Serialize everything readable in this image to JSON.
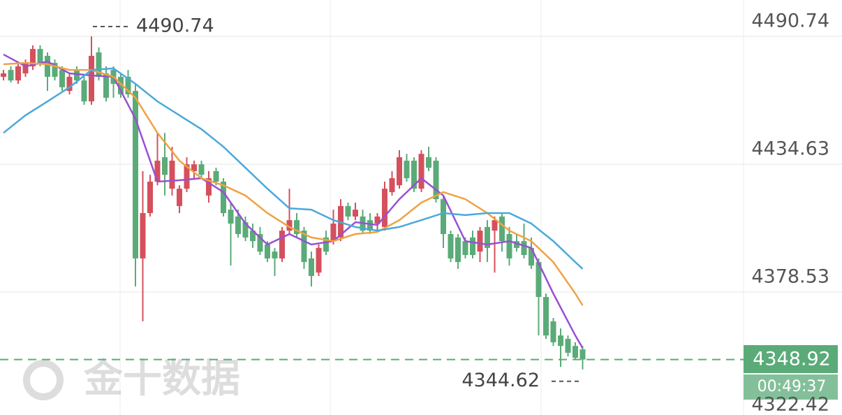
{
  "chart_data": {
    "type": "candlestick",
    "up_color": "#d4505c",
    "down_color": "#5aab78",
    "ylim": [
      4324.6,
      4506.7
    ],
    "yticks": [
      4490.74,
      4434.63,
      4378.53,
      4322.42
    ],
    "grid": true,
    "ohlc": [
      [
        4473.0,
        4476.0,
        4471.4,
        4474.5
      ],
      [
        4476.0,
        4477.6,
        4470.5,
        4471.4
      ],
      [
        4471.4,
        4479.1,
        4469.9,
        4477.6
      ],
      [
        4474.5,
        4480.6,
        4473.0,
        4479.1
      ],
      [
        4477.6,
        4486.8,
        4476.0,
        4485.2
      ],
      [
        4485.2,
        4486.8,
        4477.6,
        4479.1
      ],
      [
        4482.2,
        4483.7,
        4466.8,
        4473.0
      ],
      [
        4479.1,
        4480.6,
        4471.4,
        4473.0
      ],
      [
        4476.0,
        4477.6,
        4466.8,
        4468.4
      ],
      [
        4466.8,
        4474.5,
        4465.3,
        4473.0
      ],
      [
        4476.0,
        4477.6,
        4469.9,
        4471.4
      ],
      [
        4471.4,
        4473.0,
        4460.7,
        4462.2
      ],
      [
        4462.2,
        4490.74,
        4460.7,
        4482.2
      ],
      [
        4483.7,
        4485.9,
        4471.4,
        4473.0
      ],
      [
        4474.5,
        4477.6,
        4462.2,
        4463.8
      ],
      [
        4476.0,
        4477.6,
        4463.8,
        4469.9
      ],
      [
        4473.0,
        4474.5,
        4463.8,
        4465.3
      ],
      [
        4473.0,
        4476.0,
        4463.8,
        4465.3
      ],
      [
        4466.8,
        4469.9,
        4381.0,
        4393.3
      ],
      [
        4393.3,
        4431.6,
        4365.7,
        4413.2
      ],
      [
        4413.2,
        4430.0,
        4411.7,
        4427.0
      ],
      [
        4427.0,
        4448.4,
        4425.4,
        4436.2
      ],
      [
        4437.7,
        4448.4,
        4420.9,
        4430.0
      ],
      [
        4423.9,
        4442.3,
        4420.9,
        4436.2
      ],
      [
        4416.3,
        4425.4,
        4413.2,
        4423.9
      ],
      [
        4423.9,
        4437.7,
        4422.4,
        4434.6
      ],
      [
        4431.6,
        4436.2,
        4428.5,
        4434.6
      ],
      [
        4434.6,
        4436.2,
        4428.5,
        4430.0
      ],
      [
        4420.9,
        4431.6,
        4417.8,
        4428.5
      ],
      [
        4431.6,
        4433.1,
        4425.4,
        4427.0
      ],
      [
        4427.0,
        4428.5,
        4411.7,
        4413.2
      ],
      [
        4414.7,
        4417.8,
        4390.2,
        4408.6
      ],
      [
        4411.7,
        4414.7,
        4402.5,
        4404.0
      ],
      [
        4409.2,
        4411.7,
        4400.9,
        4402.5
      ],
      [
        4405.5,
        4408.6,
        4397.9,
        4400.9
      ],
      [
        4404.0,
        4407.1,
        4394.8,
        4396.3
      ],
      [
        4399.4,
        4400.9,
        4391.7,
        4393.3
      ],
      [
        4396.3,
        4397.9,
        4385.6,
        4393.3
      ],
      [
        4393.3,
        4407.1,
        4391.7,
        4405.5
      ],
      [
        4405.5,
        4423.9,
        4404.0,
        4410.1
      ],
      [
        4410.1,
        4413.2,
        4402.5,
        4404.0
      ],
      [
        4405.5,
        4407.1,
        4388.7,
        4391.7
      ],
      [
        4393.3,
        4396.3,
        4381.0,
        4385.6
      ],
      [
        4387.1,
        4399.4,
        4385.6,
        4397.9
      ],
      [
        4402.5,
        4405.5,
        4394.8,
        4396.3
      ],
      [
        4400.9,
        4414.7,
        4399.4,
        4408.6
      ],
      [
        4402.5,
        4419.3,
        4400.9,
        4416.3
      ],
      [
        4416.3,
        4417.8,
        4410.1,
        4411.7
      ],
      [
        4411.7,
        4417.8,
        4410.1,
        4414.7
      ],
      [
        4411.7,
        4414.7,
        4404.0,
        4405.5
      ],
      [
        4410.1,
        4413.2,
        4404.0,
        4405.5
      ],
      [
        4408.6,
        4413.2,
        4405.5,
        4411.7
      ],
      [
        4407.1,
        4427.0,
        4405.5,
        4423.9
      ],
      [
        4422.4,
        4431.6,
        4420.9,
        4428.5
      ],
      [
        4425.4,
        4440.8,
        4423.9,
        4437.7
      ],
      [
        4436.2,
        4439.2,
        4427.0,
        4428.5
      ],
      [
        4436.2,
        4437.7,
        4422.4,
        4423.9
      ],
      [
        4423.9,
        4440.8,
        4422.4,
        4439.2
      ],
      [
        4437.7,
        4442.3,
        4431.6,
        4433.1
      ],
      [
        4436.2,
        4437.7,
        4417.8,
        4419.3
      ],
      [
        4419.3,
        4420.9,
        4397.9,
        4404.0
      ],
      [
        4404.0,
        4405.5,
        4391.7,
        4393.3
      ],
      [
        4402.5,
        4404.0,
        4388.7,
        4391.7
      ],
      [
        4400.9,
        4402.5,
        4393.3,
        4394.8
      ],
      [
        4402.5,
        4405.5,
        4393.3,
        4394.8
      ],
      [
        4396.3,
        4407.1,
        4391.7,
        4405.5
      ],
      [
        4407.1,
        4410.1,
        4391.7,
        4397.9
      ],
      [
        4405.5,
        4411.7,
        4387.1,
        4410.1
      ],
      [
        4411.7,
        4413.2,
        4396.3,
        4400.9
      ],
      [
        4404.0,
        4407.1,
        4390.2,
        4393.3
      ],
      [
        4400.9,
        4404.0,
        4396.3,
        4397.9
      ],
      [
        4400.9,
        4408.6,
        4393.3,
        4394.8
      ],
      [
        4397.9,
        4402.5,
        4388.7,
        4390.2
      ],
      [
        4391.7,
        4393.3,
        4359.5,
        4376.4
      ],
      [
        4376.4,
        4377.9,
        4358.0,
        4359.5
      ],
      [
        4365.7,
        4367.2,
        4354.9,
        4356.5
      ],
      [
        4359.5,
        4362.6,
        4345.7,
        4354.9
      ],
      [
        4358.0,
        4359.5,
        4350.3,
        4351.9
      ],
      [
        4354.9,
        4356.5,
        4348.8,
        4349.7
      ],
      [
        4353.4,
        4354.9,
        4344.62,
        4348.92
      ]
    ],
    "ma_lines": [
      {
        "color": "#9a4fd2",
        "x": [
          0,
          3,
          6,
          9,
          12,
          15,
          18,
          21,
          24,
          27,
          30,
          33,
          36,
          39,
          42,
          45,
          48,
          51,
          54,
          57,
          60,
          63,
          66,
          69,
          72,
          75,
          78,
          79
        ],
        "values": [
          4482.8,
          4477.6,
          4479.7,
          4474.5,
          4473.6,
          4473.0,
          4454.6,
          4427.0,
          4427.6,
          4428.5,
          4422.4,
          4408.6,
          4399.4,
          4404.0,
          4399.4,
          4400.9,
          4409.2,
          4408.0,
          4419.3,
          4428.5,
          4420.9,
          4400.9,
          4399.4,
          4400.9,
          4397.9,
          4377.9,
          4359.5,
          4354.0
        ]
      },
      {
        "color": "#f0a243",
        "x": [
          0,
          3,
          6,
          9,
          12,
          15,
          18,
          21,
          24,
          27,
          30,
          33,
          36,
          39,
          42,
          45,
          48,
          51,
          54,
          57,
          60,
          63,
          66,
          69,
          72,
          75,
          78,
          79
        ],
        "values": [
          4478.5,
          4479.1,
          4478.5,
          4476.0,
          4476.0,
          4473.0,
          4463.8,
          4448.4,
          4436.2,
          4428.5,
          4425.4,
          4420.9,
          4413.2,
          4407.1,
          4402.5,
          4400.9,
          4404.0,
          4404.9,
          4410.1,
          4417.8,
          4422.4,
          4419.3,
          4413.2,
          4405.5,
          4400.9,
          4391.7,
          4377.9,
          4372.7
        ]
      },
      {
        "color": "#4aa9da",
        "x": [
          0,
          3,
          6,
          9,
          12,
          15,
          18,
          21,
          24,
          27,
          30,
          33,
          36,
          39,
          42,
          45,
          48,
          51,
          54,
          57,
          60,
          63,
          66,
          69,
          72,
          75,
          78,
          79
        ],
        "values": [
          4448.4,
          4456.1,
          4462.2,
          4468.4,
          4476.0,
          4476.7,
          4469.9,
          4462.2,
          4456.1,
          4450.0,
          4442.3,
          4433.1,
          4423.9,
          4415.3,
          4414.7,
          4410.1,
          4407.1,
          4405.5,
          4407.1,
          4410.1,
          4413.2,
          4412.3,
          4413.2,
          4413.2,
          4408.6,
          4400.9,
          4391.7,
          4388.7
        ]
      }
    ],
    "max_label": 4490.74,
    "min_label": 4344.62,
    "last_price": 4348.92,
    "countdown": "00:49:37",
    "watermark": "金十数据"
  }
}
